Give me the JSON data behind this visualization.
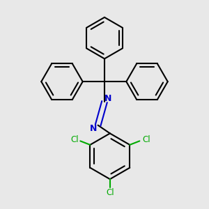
{
  "bg_color": "#e8e8e8",
  "bond_color": "#000000",
  "N_color": "#0000cc",
  "Cl_color": "#00aa00",
  "bond_width": 1.5,
  "figsize": [
    3.0,
    3.0
  ],
  "dpi": 100,
  "xlim": [
    -1.7,
    1.7
  ],
  "ylim": [
    -1.9,
    1.9
  ]
}
